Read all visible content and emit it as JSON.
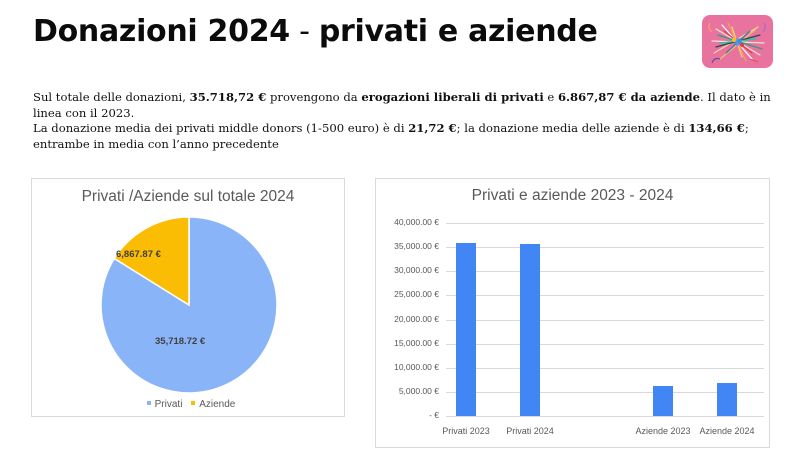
{
  "header": {
    "title_part1": "Donazioni 2024",
    "title_dash": " - ",
    "title_part2": "privati e aziende"
  },
  "logo": {
    "icon": "mikado-sticks-logo",
    "bg_color": "#e8739f"
  },
  "intro": {
    "p1": {
      "t1": "Sul totale delle donazioni, ",
      "b1": "35.718,72 €",
      "t2": " provengono da ",
      "b2": "erogazioni liberali di privati",
      "t3": " e ",
      "b3": "6.867,87 € da aziende",
      "t4": ". Il dato è in linea con il 2023."
    },
    "p2": {
      "t1": "La donazione media dei privati middle donors (1-500 euro) è di ",
      "b1": "21,72 €",
      "t2": "; la donazione media delle aziende è di ",
      "b2": "134,66 €",
      "t3": "; entrambe in media con l’anno precedente"
    }
  },
  "colors": {
    "privati_pie": "#8ab4f8",
    "aziende_pie": "#fbbc04",
    "bars": "#4285f4",
    "grid": "#d9d9d9",
    "axis_text": "#595959"
  },
  "pie": {
    "title": "Privati /Aziende sul totale 2024",
    "labels": {
      "privati": "35,718.72 €",
      "aziende": "6,867.87 €"
    },
    "legend": [
      "Privati",
      "Aziende"
    ]
  },
  "bars": {
    "title": "Privati e aziende 2023 - 2024",
    "yticks": [
      "40,000.00 €",
      "35,000.00 €",
      "30,000.00 €",
      "25,000.00 €",
      "20,000.00 €",
      "15,000.00 €",
      "10,000.00 €",
      "5,000.00 €",
      "- €"
    ],
    "categories": [
      "Privati 2023",
      "Privati 2024",
      "Aziende 2023",
      "Aziende 2024"
    ]
  },
  "chart_data": [
    {
      "type": "pie",
      "title": "Privati /Aziende sul totale 2024",
      "categories": [
        "Privati",
        "Aziende"
      ],
      "values": [
        35718.72,
        6867.87
      ],
      "data_labels": [
        "35,718.72 €",
        "6,867.87 €"
      ],
      "colors": [
        "#8ab4f8",
        "#fbbc04"
      ],
      "legend_position": "bottom"
    },
    {
      "type": "bar",
      "title": "Privati e aziende 2023 - 2024",
      "categories": [
        "Privati 2023",
        "Privati 2024",
        "",
        "Aziende 2023",
        "Aziende 2024"
      ],
      "values": [
        35800,
        35718.72,
        null,
        6200,
        6867.87
      ],
      "xlabel": "",
      "ylabel": "",
      "ylim": [
        0,
        40000
      ],
      "ytick_step": 5000,
      "ytick_format": "#,##0.00 €",
      "grid": true,
      "legend": false,
      "color": "#4285f4"
    }
  ]
}
